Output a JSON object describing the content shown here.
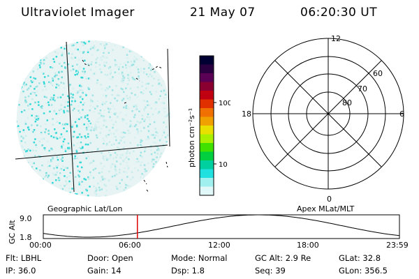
{
  "header": {
    "instrument": "Ultraviolet Imager",
    "date": "21 May 07",
    "time": "06:20:30 UT"
  },
  "colorbar": {
    "unit_label": "photon cm⁻²s⁻¹",
    "ticks": [
      "100",
      "10"
    ],
    "colors": [
      "#000033",
      "#2a0040",
      "#5a0055",
      "#8a0030",
      "#c00010",
      "#e03000",
      "#f07000",
      "#f0a000",
      "#e8e000",
      "#a8f000",
      "#40e000",
      "#00d040",
      "#00d0a0",
      "#20e0e0",
      "#a0f0f0",
      "#e0f8f8"
    ]
  },
  "polar_grid": {
    "mlt_labels": {
      "top": "12",
      "right": "6",
      "bottom": "0",
      "left": "18"
    },
    "lat_labels": [
      "80",
      "70",
      "60"
    ]
  },
  "timeline": {
    "left_label": "Geographic Lat/Lon",
    "right_label": "Apex MLat/MLT",
    "axis_title": "GC Alt",
    "y_ticks": [
      "9.0",
      "1.8"
    ],
    "x_ticks": [
      "00:00",
      "06:00",
      "12:00",
      "18:00",
      "23:59"
    ],
    "marker_time_hours": 6.34
  },
  "footer": {
    "filter": "Flt: LBHL",
    "door": "Door: Open",
    "mode": "Mode: Normal",
    "gc_alt": "GC Alt: 2.9 Re",
    "glat": "GLat:  32.8",
    "ip": "IP: 36.0",
    "gain": "Gain: 14",
    "dsp": "Dsp:     1.8",
    "seq": "Seq: 39",
    "glon": "GLon: 356.5"
  }
}
